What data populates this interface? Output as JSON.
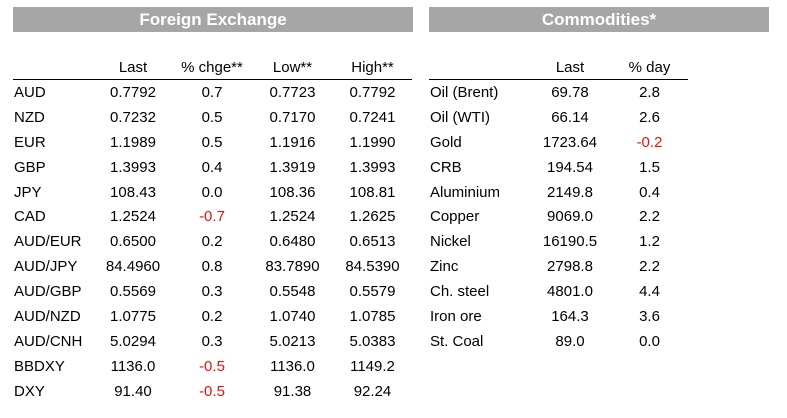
{
  "fx": {
    "title": "Foreign Exchange",
    "headers": [
      "",
      "Last",
      "% chge**",
      "Low**",
      "High**"
    ],
    "rows": [
      [
        "AUD",
        "0.7792",
        "0.7",
        "0.7723",
        "0.7792"
      ],
      [
        "NZD",
        "0.7232",
        "0.5",
        "0.7170",
        "0.7241"
      ],
      [
        "EUR",
        "1.1989",
        "0.5",
        "1.1916",
        "1.1990"
      ],
      [
        "GBP",
        "1.3993",
        "0.4",
        "1.3919",
        "1.3993"
      ],
      [
        "JPY",
        "108.43",
        "0.0",
        "108.36",
        "108.81"
      ],
      [
        "CAD",
        "1.2524",
        "-0.7",
        "1.2524",
        "1.2625"
      ],
      [
        "AUD/EUR",
        "0.6500",
        "0.2",
        "0.6480",
        "0.6513"
      ],
      [
        "AUD/JPY",
        "84.4960",
        "0.8",
        "83.7890",
        "84.5390"
      ],
      [
        "AUD/GBP",
        "0.5569",
        "0.3",
        "0.5548",
        "0.5579"
      ],
      [
        "AUD/NZD",
        "1.0775",
        "0.2",
        "1.0740",
        "1.0785"
      ],
      [
        "AUD/CNH",
        "5.0294",
        "0.3",
        "5.0213",
        "5.0383"
      ],
      [
        "BBDXY",
        "1136.0",
        "-0.5",
        "1136.0",
        "1149.2"
      ],
      [
        "DXY",
        "91.40",
        "-0.5",
        "91.38",
        "92.24"
      ]
    ]
  },
  "commodities": {
    "title": "Commodities*",
    "headers": [
      "",
      "Last",
      "% day"
    ],
    "rows": [
      [
        "Oil (Brent)",
        "69.78",
        "2.8"
      ],
      [
        "Oil (WTI)",
        "66.14",
        "2.6"
      ],
      [
        "Gold",
        "1723.64",
        "-0.2"
      ],
      [
        "CRB",
        "194.54",
        "1.5"
      ],
      [
        "Aluminium",
        "2149.8",
        "0.4"
      ],
      [
        "Copper",
        "9069.0",
        "2.2"
      ],
      [
        "Nickel",
        "16190.5",
        "1.2"
      ],
      [
        "Zinc",
        "2798.8",
        "2.2"
      ],
      [
        "Ch. steel",
        "4801.0",
        "4.4"
      ],
      [
        "Iron ore",
        "164.3",
        "3.6"
      ],
      [
        "St. Coal",
        "89.0",
        "0.0"
      ]
    ]
  },
  "colors": {
    "title_bg": "#a6a6a6",
    "title_text": "#ffffff",
    "negative": "#e8120c"
  }
}
